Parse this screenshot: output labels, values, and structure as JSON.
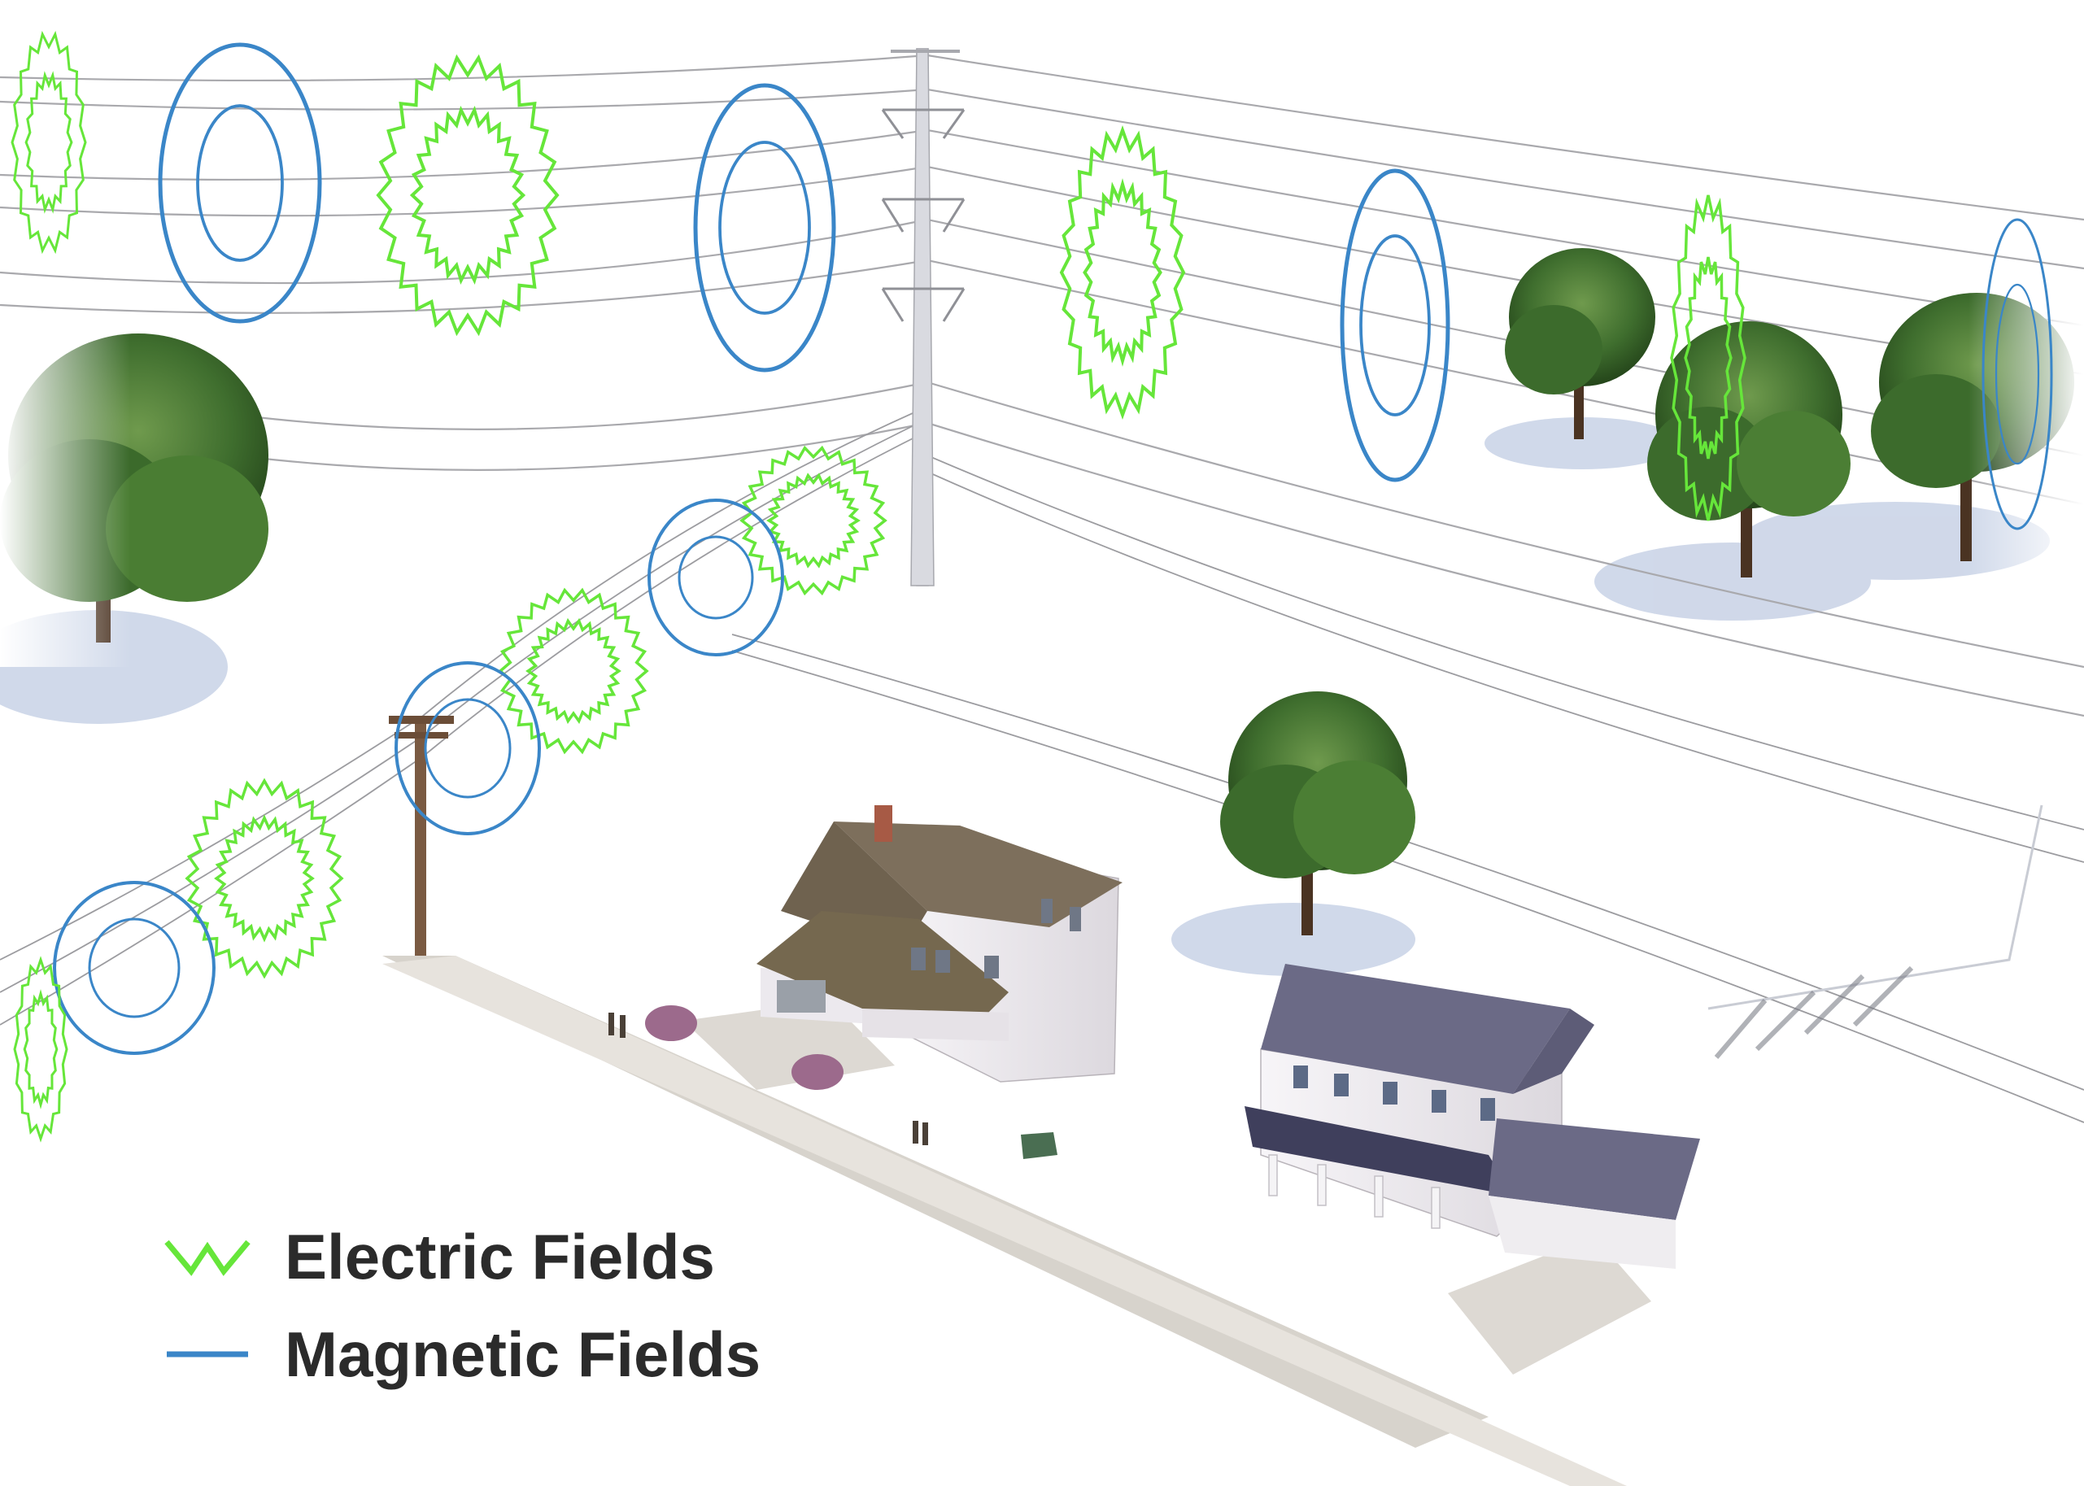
{
  "legend": {
    "electric_label": "Electric Fields",
    "magnetic_label": "Magnetic Fields",
    "electric_color": "#66e63a",
    "magnetic_color": "#3a86c8"
  },
  "scene": {
    "elements": [
      "transmission-tower",
      "distribution-pole",
      "power-lines",
      "electric-field-rings",
      "magnetic-field-rings",
      "trees",
      "house-left",
      "house-right",
      "sidewalk",
      "driveways",
      "pedestrians",
      "transformer-box"
    ],
    "colors": {
      "house_left_roof": "#7d6f5c",
      "house_right_roof": "#6b6a86",
      "house_wall": "#f2f0f2",
      "sidewalk": "#d7d3cc",
      "tree_foliage": "#3f6e2e",
      "tree_shadow": "#c9d3e6",
      "wire": "#a9a9ad",
      "pole_wood": "#7a5a42"
    }
  }
}
